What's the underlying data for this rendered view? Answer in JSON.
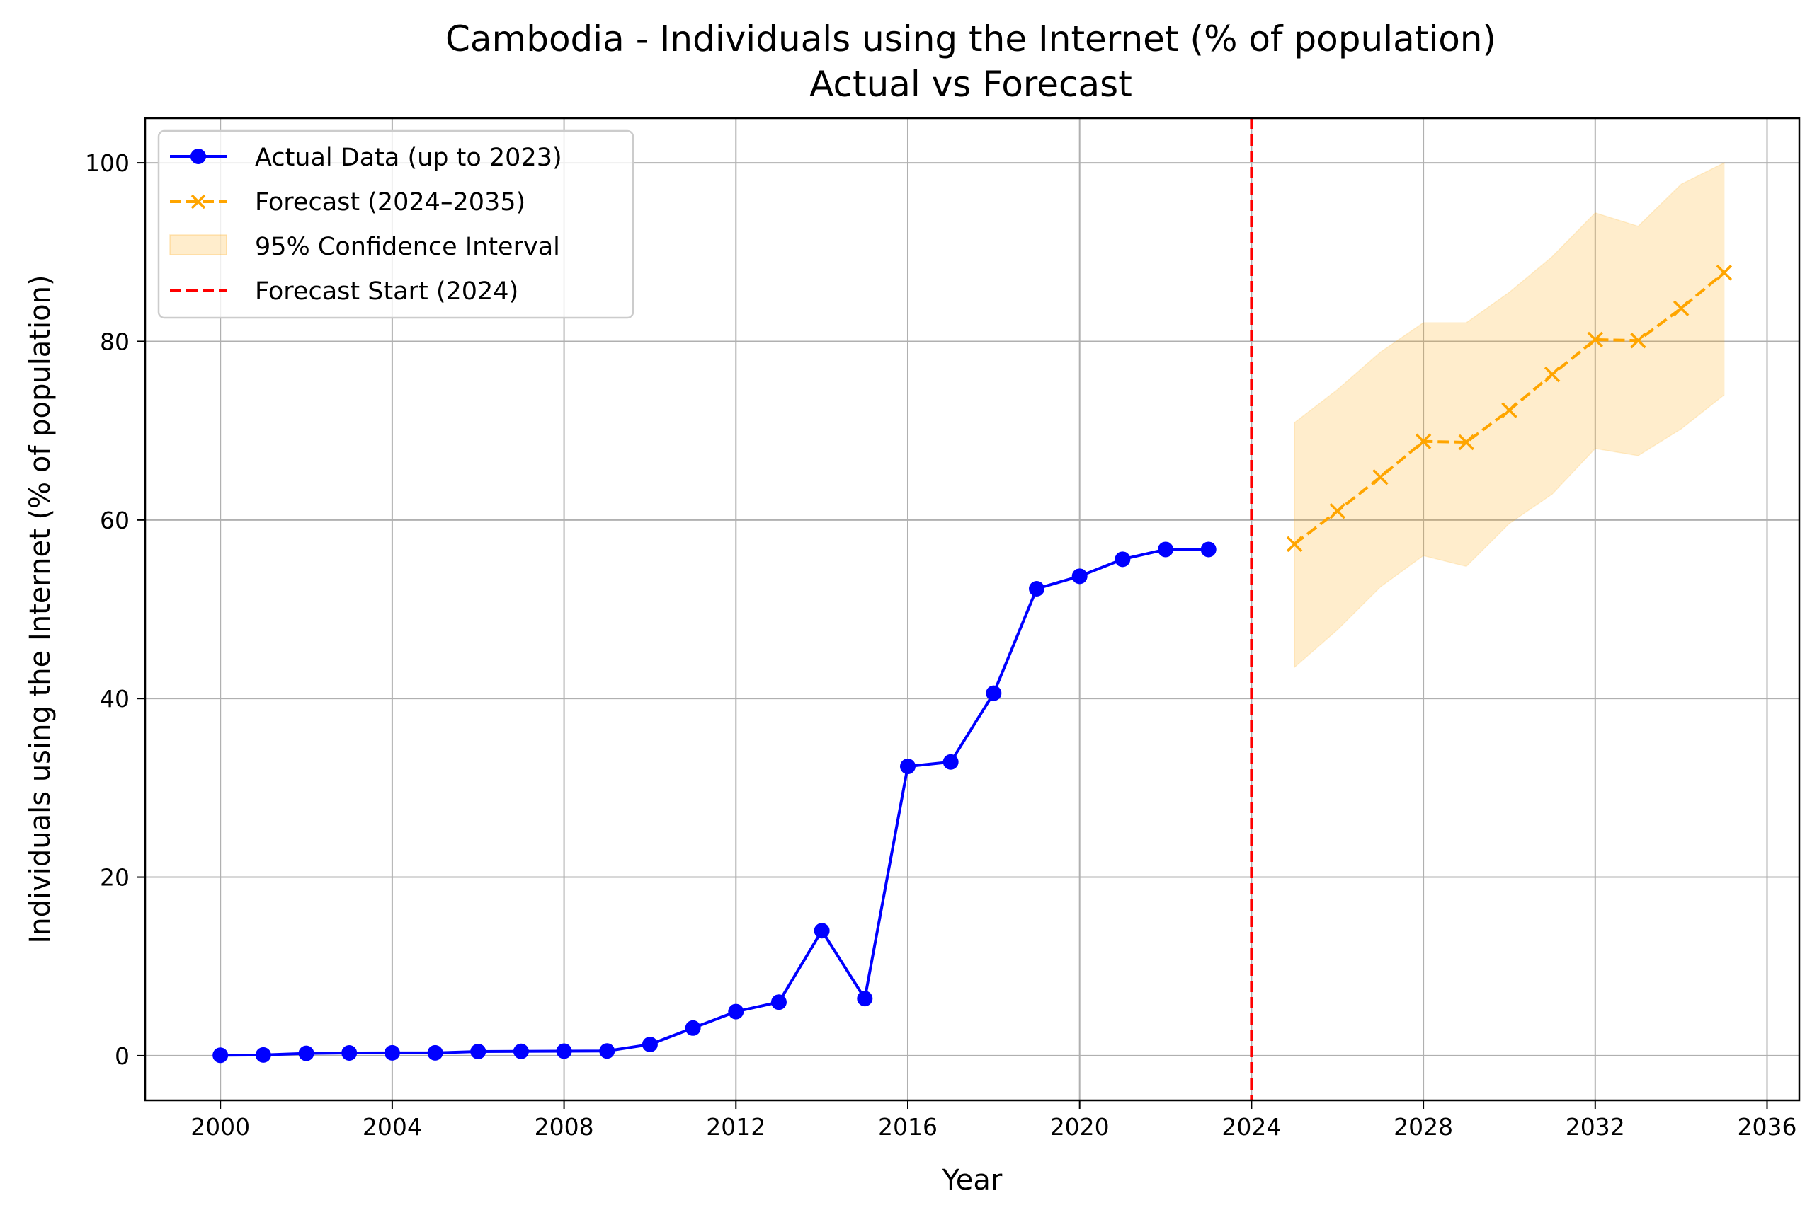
{
  "chart_data": {
    "type": "line",
    "title": "Cambodia - Individuals using the Internet (% of population)",
    "subtitle": "Actual vs Forecast",
    "xlabel": "Year",
    "ylabel": "Individuals using the Internet (% of population)",
    "xlim": [
      1998.25,
      2036.75
    ],
    "ylim": [
      -5,
      105
    ],
    "xticks": [
      2000,
      2004,
      2008,
      2012,
      2016,
      2020,
      2024,
      2028,
      2032,
      2036
    ],
    "yticks": [
      0,
      20,
      40,
      60,
      80,
      100
    ],
    "grid": true,
    "legend_position": "top-left",
    "series": [
      {
        "name": "Actual Data (up to 2023)",
        "color": "#0000ff",
        "style": "solid",
        "marker": "circle",
        "x": [
          2000,
          2001,
          2002,
          2003,
          2004,
          2005,
          2006,
          2007,
          2008,
          2009,
          2010,
          2011,
          2012,
          2013,
          2014,
          2015,
          2016,
          2017,
          2018,
          2019,
          2020,
          2021,
          2022,
          2023
        ],
        "values": [
          0.05,
          0.08,
          0.26,
          0.31,
          0.32,
          0.32,
          0.47,
          0.49,
          0.51,
          0.53,
          1.26,
          3.1,
          4.94,
          6.0,
          14.0,
          6.4,
          32.4,
          32.9,
          40.6,
          52.3,
          53.7,
          55.6,
          56.7,
          56.7
        ]
      },
      {
        "name": "Forecast (2024–2035)",
        "color": "#ffa500",
        "style": "dashed",
        "marker": "x",
        "x": [
          2025,
          2026,
          2027,
          2028,
          2029,
          2030,
          2031,
          2032,
          2033,
          2034,
          2035
        ],
        "values": [
          57.3,
          61.0,
          64.8,
          68.8,
          68.7,
          72.3,
          76.3,
          80.2,
          80.1,
          83.7,
          87.7
        ]
      }
    ],
    "confidence_interval": {
      "name": "95% Confidence Interval",
      "color": "#ffa500",
      "x": [
        2025,
        2026,
        2027,
        2028,
        2029,
        2030,
        2031,
        2032,
        2033,
        2034,
        2035
      ],
      "lower": [
        43.5,
        47.7,
        52.5,
        56.0,
        54.8,
        59.6,
        62.9,
        68.0,
        67.2,
        70.2,
        74.0
      ],
      "upper": [
        70.9,
        74.6,
        78.8,
        82.1,
        82.1,
        85.5,
        89.5,
        94.4,
        92.9,
        97.6,
        100.0
      ]
    },
    "forecast_start": {
      "name": "Forecast Start (2024)",
      "x": 2024,
      "color": "#ff0000",
      "style": "dashed"
    }
  }
}
